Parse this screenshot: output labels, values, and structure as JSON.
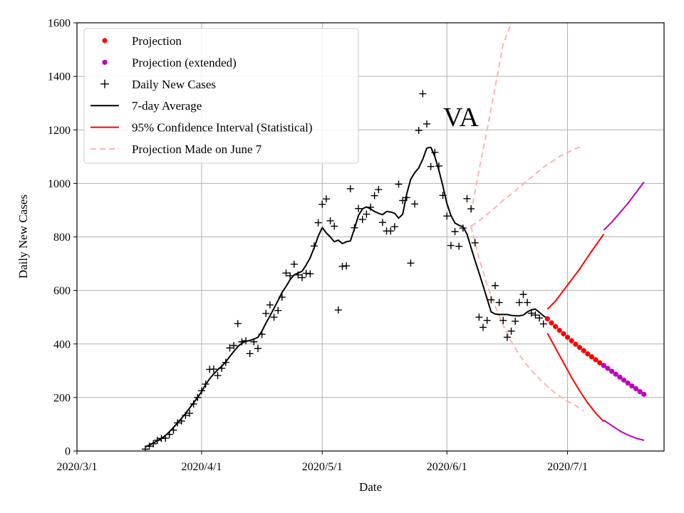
{
  "chart_data": {
    "type": "line",
    "annotation": "VA",
    "xlabel": "Date",
    "ylabel": "Daily New Cases",
    "x_start_date": "2020-03-01",
    "xlim_days": [
      0,
      146
    ],
    "ylim": [
      0,
      1600
    ],
    "xticks": [
      {
        "day": 0,
        "label": "2020/3/1"
      },
      {
        "day": 31,
        "label": "2020/4/1"
      },
      {
        "day": 61,
        "label": "2020/5/1"
      },
      {
        "day": 92,
        "label": "2020/6/1"
      },
      {
        "day": 122,
        "label": "2020/7/1"
      }
    ],
    "yticks": [
      0,
      200,
      400,
      600,
      800,
      1000,
      1200,
      1400,
      1600
    ],
    "grid": true,
    "legend_position": "top-left",
    "legend": [
      {
        "key": "proj",
        "label": "Projection",
        "style": "dot",
        "color": "#ff0000"
      },
      {
        "key": "proj_ext",
        "label": "Projection (extended)",
        "style": "dot",
        "color": "#bf00bf"
      },
      {
        "key": "daily",
        "label": "Daily New Cases",
        "style": "plus",
        "color": "#000000"
      },
      {
        "key": "avg",
        "label": "7-day Average",
        "style": "line",
        "color": "#000000"
      },
      {
        "key": "ci",
        "label": "95% Confidence Interval (Statistical)",
        "style": "line",
        "color": "#ff0000"
      },
      {
        "key": "june7",
        "label": "Projection Made on June 7",
        "style": "dash",
        "color": "#ffb3b3"
      }
    ],
    "series": {
      "daily_new_cases": [
        [
          17,
          7
        ],
        [
          18,
          18
        ],
        [
          19,
          27
        ],
        [
          20,
          40
        ],
        [
          21,
          47
        ],
        [
          22,
          48
        ],
        [
          23,
          62
        ],
        [
          24,
          78
        ],
        [
          25,
          105
        ],
        [
          26,
          112
        ],
        [
          27,
          133
        ],
        [
          28,
          141
        ],
        [
          29,
          176
        ],
        [
          30,
          200
        ],
        [
          31,
          225
        ],
        [
          32,
          250
        ],
        [
          33,
          305
        ],
        [
          34,
          306
        ],
        [
          35,
          282
        ],
        [
          36,
          309
        ],
        [
          37,
          331
        ],
        [
          38,
          385
        ],
        [
          39,
          394
        ],
        [
          40,
          476
        ],
        [
          41,
          408
        ],
        [
          42,
          412
        ],
        [
          43,
          364
        ],
        [
          44,
          408
        ],
        [
          45,
          383
        ],
        [
          46,
          436
        ],
        [
          47,
          514
        ],
        [
          48,
          546
        ],
        [
          49,
          500
        ],
        [
          50,
          525
        ],
        [
          51,
          575
        ],
        [
          52,
          665
        ],
        [
          53,
          655
        ],
        [
          54,
          698
        ],
        [
          55,
          658
        ],
        [
          56,
          648
        ],
        [
          57,
          664
        ],
        [
          58,
          662
        ],
        [
          59,
          766
        ],
        [
          60,
          853
        ],
        [
          61,
          922
        ],
        [
          62,
          942
        ],
        [
          63,
          860
        ],
        [
          64,
          840
        ],
        [
          65,
          527
        ],
        [
          66,
          690
        ],
        [
          67,
          692
        ],
        [
          68,
          980
        ],
        [
          69,
          834
        ],
        [
          70,
          906
        ],
        [
          71,
          865
        ],
        [
          72,
          885
        ],
        [
          73,
          911
        ],
        [
          74,
          954
        ],
        [
          75,
          977
        ],
        [
          76,
          854
        ],
        [
          77,
          822
        ],
        [
          78,
          822
        ],
        [
          79,
          838
        ],
        [
          80,
          997
        ],
        [
          81,
          936
        ],
        [
          82,
          947
        ],
        [
          83,
          702
        ],
        [
          84,
          923
        ],
        [
          85,
          1198
        ],
        [
          86,
          1335
        ],
        [
          87,
          1222
        ],
        [
          88,
          1063
        ],
        [
          89,
          1116
        ],
        [
          90,
          1065
        ],
        [
          91,
          955
        ],
        [
          92,
          878
        ],
        [
          93,
          768
        ],
        [
          94,
          820
        ],
        [
          95,
          765
        ],
        [
          96,
          833
        ],
        [
          97,
          943
        ],
        [
          98,
          905
        ],
        [
          99,
          778
        ],
        [
          100,
          500
        ],
        [
          101,
          462
        ],
        [
          102,
          488
        ],
        [
          103,
          565
        ],
        [
          104,
          618
        ],
        [
          105,
          555
        ],
        [
          106,
          488
        ],
        [
          107,
          425
        ],
        [
          108,
          448
        ],
        [
          109,
          485
        ],
        [
          110,
          555
        ],
        [
          111,
          585
        ],
        [
          112,
          555
        ],
        [
          113,
          515
        ],
        [
          114,
          508
        ],
        [
          115,
          497
        ],
        [
          116,
          475
        ]
      ],
      "seven_day_average": [
        [
          17,
          15
        ],
        [
          18,
          22
        ],
        [
          19,
          30
        ],
        [
          20,
          38
        ],
        [
          21,
          47
        ],
        [
          22,
          58
        ],
        [
          23,
          72
        ],
        [
          24,
          88
        ],
        [
          25,
          105
        ],
        [
          26,
          122
        ],
        [
          27,
          140
        ],
        [
          28,
          160
        ],
        [
          29,
          180
        ],
        [
          30,
          200
        ],
        [
          31,
          222
        ],
        [
          32,
          248
        ],
        [
          33,
          270
        ],
        [
          34,
          288
        ],
        [
          35,
          303
        ],
        [
          36,
          317
        ],
        [
          37,
          333
        ],
        [
          38,
          353
        ],
        [
          39,
          372
        ],
        [
          40,
          390
        ],
        [
          41,
          403
        ],
        [
          42,
          410
        ],
        [
          43,
          413
        ],
        [
          44,
          418
        ],
        [
          45,
          425
        ],
        [
          46,
          448
        ],
        [
          47,
          478
        ],
        [
          48,
          505
        ],
        [
          49,
          533
        ],
        [
          50,
          562
        ],
        [
          51,
          592
        ],
        [
          52,
          615
        ],
        [
          53,
          640
        ],
        [
          54,
          658
        ],
        [
          55,
          665
        ],
        [
          56,
          672
        ],
        [
          57,
          695
        ],
        [
          58,
          722
        ],
        [
          59,
          760
        ],
        [
          60,
          803
        ],
        [
          61,
          835
        ],
        [
          62,
          815
        ],
        [
          63,
          800
        ],
        [
          64,
          782
        ],
        [
          65,
          788
        ],
        [
          66,
          775
        ],
        [
          67,
          782
        ],
        [
          68,
          785
        ],
        [
          69,
          830
        ],
        [
          70,
          880
        ],
        [
          71,
          905
        ],
        [
          72,
          912
        ],
        [
          73,
          905
        ],
        [
          74,
          895
        ],
        [
          75,
          888
        ],
        [
          76,
          883
        ],
        [
          77,
          895
        ],
        [
          78,
          893
        ],
        [
          79,
          888
        ],
        [
          80,
          870
        ],
        [
          81,
          885
        ],
        [
          82,
          960
        ],
        [
          83,
          1015
        ],
        [
          84,
          1040
        ],
        [
          85,
          1058
        ],
        [
          86,
          1090
        ],
        [
          87,
          1132
        ],
        [
          88,
          1135
        ],
        [
          89,
          1100
        ],
        [
          90,
          1050
        ],
        [
          91,
          990
        ],
        [
          92,
          925
        ],
        [
          93,
          880
        ],
        [
          94,
          852
        ],
        [
          95,
          843
        ],
        [
          96,
          838
        ],
        [
          97,
          810
        ],
        [
          98,
          760
        ],
        [
          99,
          712
        ],
        [
          100,
          665
        ],
        [
          101,
          618
        ],
        [
          102,
          568
        ],
        [
          103,
          520
        ],
        [
          104,
          512
        ],
        [
          105,
          510
        ],
        [
          106,
          510
        ],
        [
          107,
          510
        ],
        [
          108,
          507
        ],
        [
          109,
          505
        ],
        [
          110,
          505
        ],
        [
          111,
          508
        ],
        [
          112,
          520
        ],
        [
          113,
          528
        ],
        [
          114,
          530
        ],
        [
          115,
          518
        ],
        [
          116,
          505
        ],
        [
          117,
          495
        ]
      ],
      "projection": [
        [
          117,
          494
        ],
        [
          118,
          479
        ],
        [
          119,
          465
        ],
        [
          120,
          451
        ],
        [
          121,
          438
        ],
        [
          122,
          425
        ],
        [
          123,
          412
        ],
        [
          124,
          399
        ],
        [
          125,
          387
        ],
        [
          126,
          375
        ],
        [
          127,
          363
        ],
        [
          128,
          352
        ],
        [
          129,
          341
        ],
        [
          130,
          330
        ],
        [
          131,
          319
        ]
      ],
      "projection_extended": [
        [
          131,
          320
        ],
        [
          132,
          309
        ],
        [
          133,
          298
        ],
        [
          134,
          287
        ],
        [
          135,
          276
        ],
        [
          136,
          265
        ],
        [
          137,
          254
        ],
        [
          138,
          243
        ],
        [
          139,
          233
        ],
        [
          140,
          222
        ],
        [
          141,
          212
        ]
      ],
      "ci_upper": [
        [
          117,
          530
        ],
        [
          119,
          560
        ],
        [
          121,
          600
        ],
        [
          123,
          640
        ],
        [
          125,
          680
        ],
        [
          127,
          725
        ],
        [
          129,
          768
        ],
        [
          131,
          810
        ]
      ],
      "ci_lower": [
        [
          117,
          440
        ],
        [
          119,
          385
        ],
        [
          121,
          330
        ],
        [
          123,
          275
        ],
        [
          125,
          225
        ],
        [
          127,
          180
        ],
        [
          129,
          142
        ],
        [
          131,
          110
        ]
      ],
      "ci_upper_extended": [
        [
          131,
          825
        ],
        [
          133,
          855
        ],
        [
          135,
          890
        ],
        [
          137,
          925
        ],
        [
          139,
          965
        ],
        [
          141,
          1005
        ]
      ],
      "ci_lower_extended": [
        [
          131,
          115
        ],
        [
          133,
          95
        ],
        [
          135,
          75
        ],
        [
          137,
          60
        ],
        [
          139,
          48
        ],
        [
          141,
          40
        ]
      ],
      "june7_upper": [
        [
          98,
          890
        ],
        [
          100,
          1050
        ],
        [
          102,
          1200
        ],
        [
          104,
          1360
        ],
        [
          106,
          1520
        ],
        [
          108,
          1600
        ]
      ],
      "june7_mid": [
        [
          98,
          840
        ],
        [
          100,
          860
        ],
        [
          102,
          885
        ],
        [
          104,
          910
        ],
        [
          106,
          937
        ],
        [
          108,
          960
        ],
        [
          110,
          985
        ],
        [
          112,
          1010
        ],
        [
          114,
          1035
        ],
        [
          116,
          1060
        ],
        [
          118,
          1080
        ],
        [
          120,
          1100
        ],
        [
          122,
          1115
        ],
        [
          124,
          1130
        ],
        [
          126,
          1140
        ]
      ],
      "june7_lower": [
        [
          98,
          840
        ],
        [
          100,
          720
        ],
        [
          102,
          620
        ],
        [
          104,
          540
        ],
        [
          106,
          470
        ],
        [
          108,
          410
        ],
        [
          110,
          360
        ],
        [
          112,
          320
        ],
        [
          114,
          285
        ],
        [
          116,
          255
        ],
        [
          118,
          228
        ],
        [
          120,
          205
        ],
        [
          122,
          185
        ],
        [
          124,
          170
        ],
        [
          126,
          150
        ]
      ]
    }
  }
}
